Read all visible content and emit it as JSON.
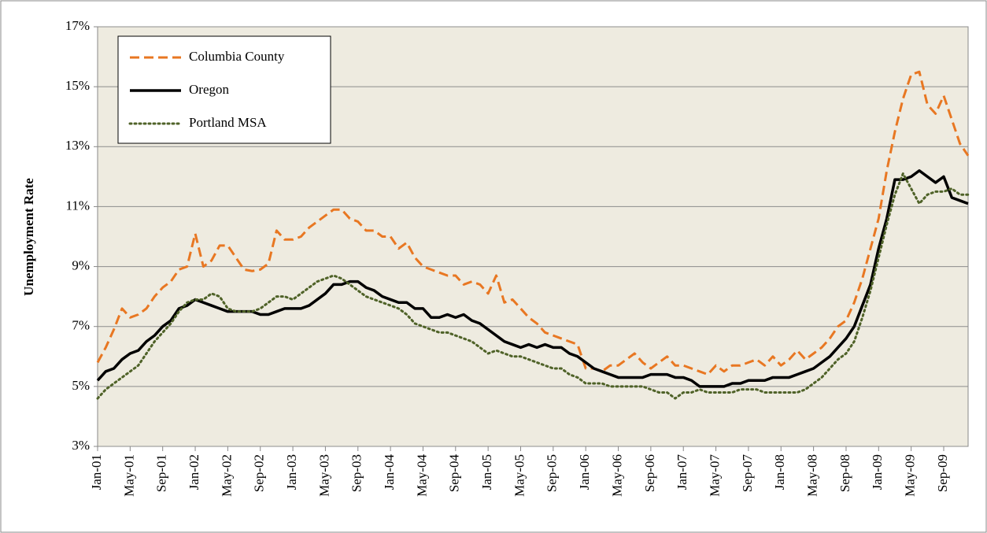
{
  "chart_data": {
    "type": "line",
    "y_label": "Unemployment Rate",
    "categories": [
      "Jan-01",
      null,
      null,
      null,
      "May-01",
      null,
      null,
      null,
      "Sep-01",
      null,
      null,
      null,
      "Jan-02",
      null,
      null,
      null,
      "May-02",
      null,
      null,
      null,
      "Sep-02",
      null,
      null,
      null,
      "Jan-03",
      null,
      null,
      null,
      "May-03",
      null,
      null,
      null,
      "Sep-03",
      null,
      null,
      null,
      "Jan-04",
      null,
      null,
      null,
      "May-04",
      null,
      null,
      null,
      "Sep-04",
      null,
      null,
      null,
      "Jan-05",
      null,
      null,
      null,
      "May-05",
      null,
      null,
      null,
      "Sep-05",
      null,
      null,
      null,
      "Jan-06",
      null,
      null,
      null,
      "May-06",
      null,
      null,
      null,
      "Sep-06",
      null,
      null,
      null,
      "Jan-07",
      null,
      null,
      null,
      "May-07",
      null,
      null,
      null,
      "Sep-07",
      null,
      null,
      null,
      "Jan-08",
      null,
      null,
      null,
      "May-08",
      null,
      null,
      null,
      "Sep-08",
      null,
      null,
      null,
      "Jan-09",
      null,
      null,
      null,
      "May-09",
      null,
      null,
      null,
      "Sep-09",
      null,
      null,
      null
    ],
    "series": [
      {
        "name": "Columbia County",
        "color": "#e87722",
        "style": "dashed",
        "values": [
          5.8,
          6.3,
          6.9,
          7.6,
          7.3,
          7.4,
          7.6,
          8.0,
          8.3,
          8.5,
          8.9,
          9.0,
          10.1,
          9.0,
          9.2,
          9.7,
          9.7,
          9.3,
          8.9,
          8.85,
          8.9,
          9.1,
          10.2,
          9.9,
          9.9,
          10.0,
          10.3,
          10.5,
          10.7,
          10.9,
          10.9,
          10.6,
          10.5,
          10.2,
          10.2,
          10.0,
          10.0,
          9.6,
          9.8,
          9.3,
          9.0,
          8.9,
          8.8,
          8.7,
          8.7,
          8.4,
          8.5,
          8.4,
          8.1,
          8.7,
          7.8,
          7.9,
          7.6,
          7.3,
          7.1,
          6.8,
          6.7,
          6.6,
          6.5,
          6.4,
          5.6,
          5.6,
          5.5,
          5.7,
          5.7,
          5.9,
          6.1,
          5.8,
          5.6,
          5.8,
          6.0,
          5.7,
          5.7,
          5.6,
          5.5,
          5.4,
          5.7,
          5.5,
          5.7,
          5.7,
          5.8,
          5.9,
          5.7,
          6.0,
          5.7,
          5.9,
          6.2,
          5.9,
          6.1,
          6.3,
          6.6,
          7.0,
          7.2,
          7.8,
          8.6,
          9.6,
          10.6,
          12.2,
          13.5,
          14.6,
          15.4,
          15.5,
          14.4,
          14.1,
          14.7,
          13.9,
          13.1,
          12.7
        ]
      },
      {
        "name": "Oregon",
        "color": "#000000",
        "style": "solid",
        "values": [
          5.2,
          5.5,
          5.6,
          5.9,
          6.1,
          6.2,
          6.5,
          6.7,
          7.0,
          7.2,
          7.6,
          7.7,
          7.9,
          7.8,
          7.7,
          7.6,
          7.5,
          7.5,
          7.5,
          7.5,
          7.4,
          7.4,
          7.5,
          7.6,
          7.6,
          7.6,
          7.7,
          7.9,
          8.1,
          8.4,
          8.4,
          8.5,
          8.5,
          8.3,
          8.2,
          8.0,
          7.9,
          7.8,
          7.8,
          7.6,
          7.6,
          7.3,
          7.3,
          7.4,
          7.3,
          7.4,
          7.2,
          7.1,
          6.9,
          6.7,
          6.5,
          6.4,
          6.3,
          6.4,
          6.3,
          6.4,
          6.3,
          6.3,
          6.1,
          6.0,
          5.8,
          5.6,
          5.5,
          5.4,
          5.3,
          5.3,
          5.3,
          5.3,
          5.4,
          5.4,
          5.4,
          5.3,
          5.3,
          5.2,
          5.0,
          5.0,
          5.0,
          5.0,
          5.1,
          5.1,
          5.2,
          5.2,
          5.2,
          5.3,
          5.3,
          5.3,
          5.4,
          5.5,
          5.6,
          5.8,
          6.0,
          6.3,
          6.6,
          7.0,
          7.7,
          8.4,
          9.6,
          10.6,
          11.9,
          11.9,
          12.0,
          12.2,
          12.0,
          11.8,
          12.0,
          11.3,
          11.2,
          11.1
        ]
      },
      {
        "name": "Portland MSA",
        "color": "#4f6228",
        "style": "dotted",
        "values": [
          4.6,
          4.9,
          5.1,
          5.3,
          5.5,
          5.7,
          6.1,
          6.5,
          6.8,
          7.1,
          7.5,
          7.8,
          7.9,
          7.9,
          8.1,
          8.0,
          7.6,
          7.5,
          7.5,
          7.5,
          7.6,
          7.8,
          8.0,
          8.0,
          7.9,
          8.1,
          8.3,
          8.5,
          8.6,
          8.7,
          8.6,
          8.4,
          8.2,
          8.0,
          7.9,
          7.8,
          7.7,
          7.6,
          7.4,
          7.1,
          7.0,
          6.9,
          6.8,
          6.8,
          6.7,
          6.6,
          6.5,
          6.3,
          6.1,
          6.2,
          6.1,
          6.0,
          6.0,
          5.9,
          5.8,
          5.7,
          5.6,
          5.6,
          5.4,
          5.3,
          5.1,
          5.1,
          5.1,
          5.0,
          5.0,
          5.0,
          5.0,
          5.0,
          4.9,
          4.8,
          4.8,
          4.6,
          4.8,
          4.8,
          4.9,
          4.8,
          4.8,
          4.8,
          4.8,
          4.9,
          4.9,
          4.9,
          4.8,
          4.8,
          4.8,
          4.8,
          4.8,
          4.9,
          5.1,
          5.3,
          5.6,
          5.9,
          6.1,
          6.5,
          7.3,
          8.2,
          9.3,
          10.4,
          11.4,
          12.1,
          11.6,
          11.1,
          11.4,
          11.5,
          11.5,
          11.6,
          11.4,
          11.4
        ]
      }
    ],
    "ylim": [
      3,
      17
    ],
    "yticks": [
      {
        "value": 3,
        "label": "3%"
      },
      {
        "value": 5,
        "label": "5%"
      },
      {
        "value": 7,
        "label": "7%"
      },
      {
        "value": 9,
        "label": "9%"
      },
      {
        "value": 11,
        "label": "11%"
      },
      {
        "value": 13,
        "label": "13%"
      },
      {
        "value": 15,
        "label": "15%"
      },
      {
        "value": 17,
        "label": "17%"
      }
    ],
    "grid": true,
    "legend": "top-left",
    "background": "#eeebe0"
  }
}
